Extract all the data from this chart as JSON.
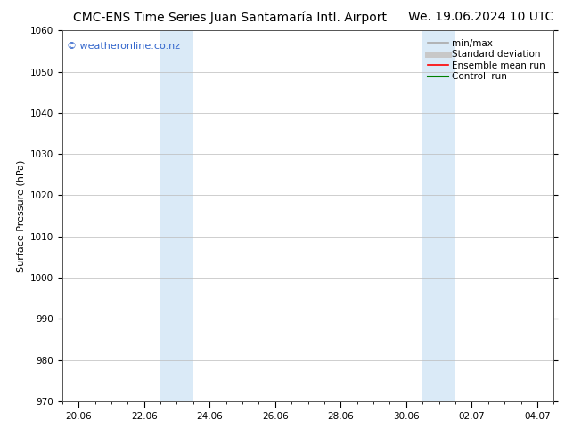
{
  "title_left": "CMC-ENS Time Series Juan Santamaría Intl. Airport",
  "title_right": "We. 19.06.2024 10 UTC",
  "ylabel": "Surface Pressure (hPa)",
  "ylim": [
    970,
    1060
  ],
  "yticks": [
    970,
    980,
    990,
    1000,
    1010,
    1020,
    1030,
    1040,
    1050,
    1060
  ],
  "xtick_labels": [
    "20.06",
    "22.06",
    "24.06",
    "26.06",
    "28.06",
    "30.06",
    "02.07",
    "04.07"
  ],
  "xtick_positions": [
    0.0,
    2.0,
    4.0,
    6.0,
    8.0,
    10.0,
    12.0,
    14.0
  ],
  "xlim": [
    -0.5,
    14.5
  ],
  "shaded_bands": [
    {
      "x_start": 2.5,
      "x_end": 3.5,
      "color": "#daeaf7"
    },
    {
      "x_start": 10.5,
      "x_end": 11.5,
      "color": "#daeaf7"
    }
  ],
  "watermark_text": "© weatheronline.co.nz",
  "watermark_color": "#3366cc",
  "watermark_fontsize": 8,
  "legend_items": [
    {
      "label": "min/max",
      "color": "#aaaaaa",
      "lw": 1.2,
      "ls": "-"
    },
    {
      "label": "Standard deviation",
      "color": "#c8c8c8",
      "lw": 5,
      "ls": "-"
    },
    {
      "label": "Ensemble mean run",
      "color": "#ff0000",
      "lw": 1.2,
      "ls": "-"
    },
    {
      "label": "Controll run",
      "color": "#008000",
      "lw": 1.5,
      "ls": "-"
    }
  ],
  "bg_color": "#ffffff",
  "plot_bg_color": "#ffffff",
  "grid_color": "#bbbbbb",
  "title_fontsize": 10,
  "axis_label_fontsize": 8,
  "tick_fontsize": 7.5,
  "legend_fontsize": 7.5
}
